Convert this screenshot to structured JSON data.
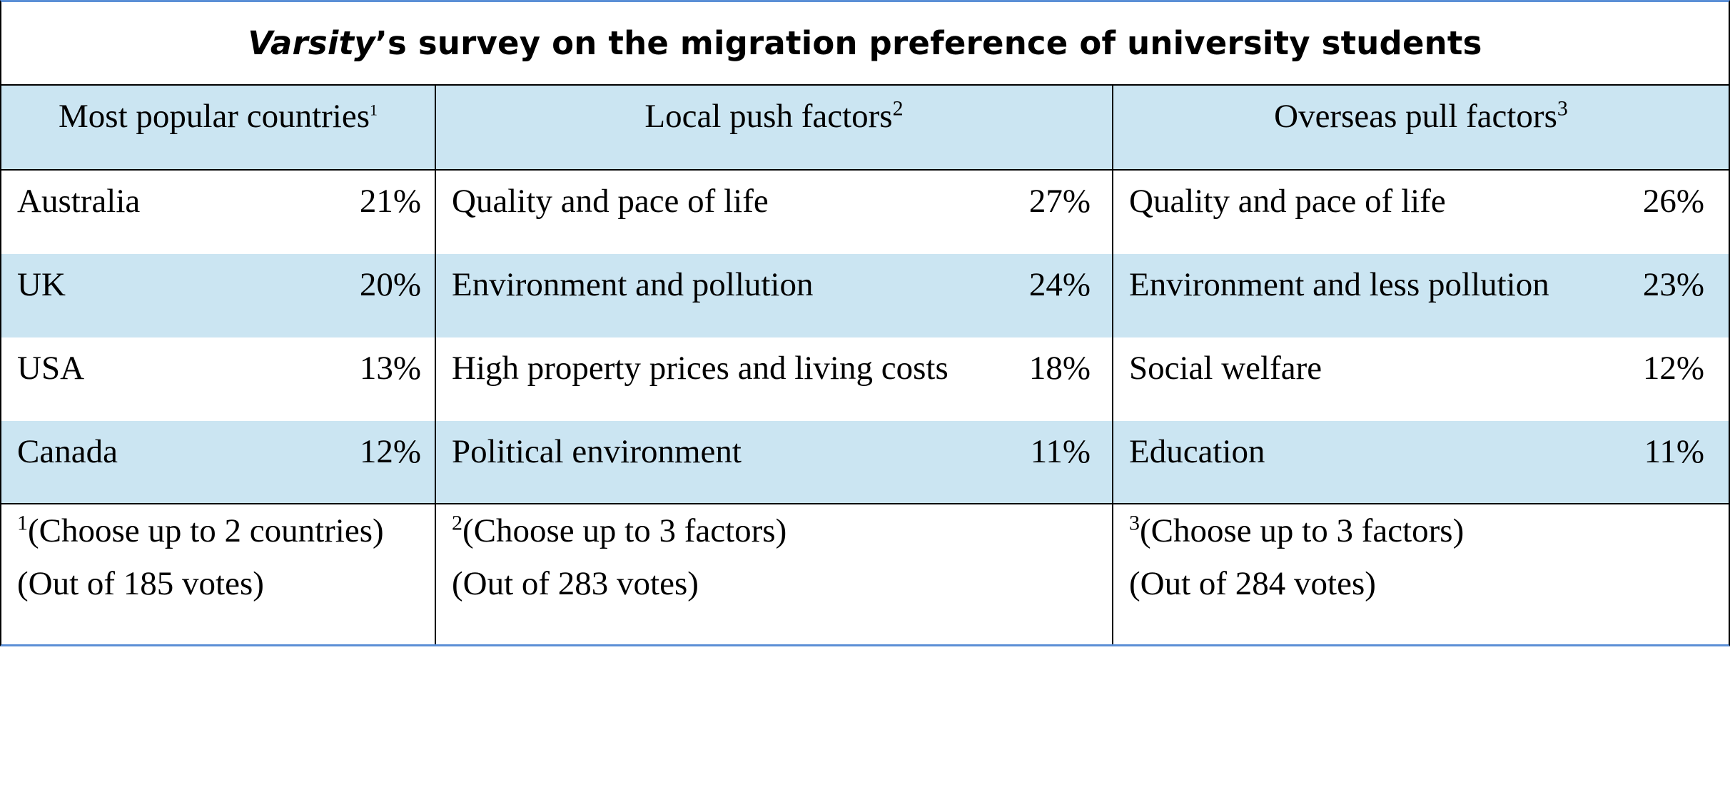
{
  "title": {
    "italic": "Varsity",
    "rest": "’s survey on the migration preference of university students"
  },
  "headers": [
    {
      "label": "Most popular countries",
      "note": "1"
    },
    {
      "label": "Local push factors",
      "note": "2"
    },
    {
      "label": "Overseas pull factors",
      "note": "3"
    }
  ],
  "rows": [
    {
      "countries": {
        "label": "Australia",
        "value": "21%"
      },
      "push": {
        "label": "Quality and pace of life",
        "value": "27%"
      },
      "pull": {
        "label": "Quality and pace of life",
        "value": "26%"
      }
    },
    {
      "countries": {
        "label": "UK",
        "value": "20%"
      },
      "push": {
        "label": "Environment and pollution",
        "value": "24%"
      },
      "pull": {
        "label": "Environment and less pollution",
        "value": "23%"
      }
    },
    {
      "countries": {
        "label": "USA",
        "value": "13%"
      },
      "push": {
        "label": "High property prices and living costs",
        "value": "18%"
      },
      "pull": {
        "label": "Social welfare",
        "value": "12%"
      }
    },
    {
      "countries": {
        "label": "Canada",
        "value": "12%"
      },
      "push": {
        "label": "Political environment",
        "value": "11%"
      },
      "pull": {
        "label": "Education",
        "value": "11%"
      }
    }
  ],
  "notes": [
    {
      "mark": "1",
      "choose": "(Choose up to 2 countries)",
      "votes": "(Out of 185 votes)"
    },
    {
      "mark": "2",
      "choose": "(Choose up to 3 factors)",
      "votes": "(Out of 283 votes)"
    },
    {
      "mark": "3",
      "choose": "(Choose up to 3 factors)",
      "votes": "(Out of 284 votes)"
    }
  ],
  "colors": {
    "shade": "#cbe5f2",
    "outer_border": "#5b8fd6"
  }
}
